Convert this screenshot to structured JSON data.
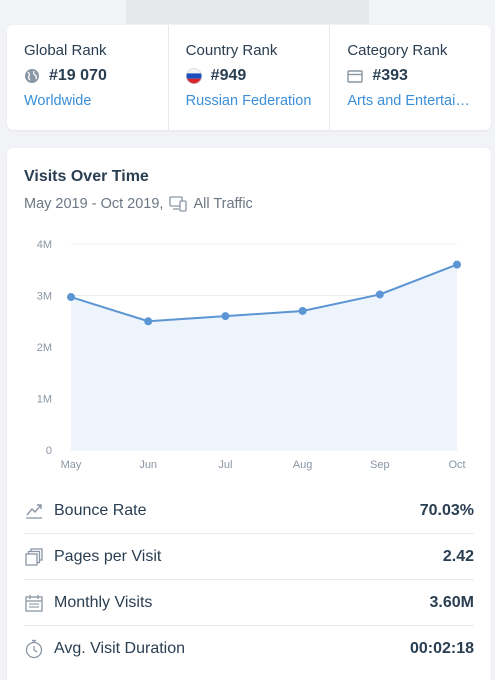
{
  "ranks": [
    {
      "title": "Global Rank",
      "value": "#19 070",
      "link": "Worldwide",
      "icon": "globe-icon"
    },
    {
      "title": "Country Rank",
      "value": "#949",
      "link": "Russian Federation",
      "icon": "russia-flag-icon"
    },
    {
      "title": "Category Rank",
      "value": "#393",
      "link": "Arts and Entertai…",
      "icon": "category-icon"
    }
  ],
  "visits": {
    "title": "Visits Over Time",
    "date_range": "May 2019 - Oct 2019,",
    "traffic": "All Traffic"
  },
  "chart_data": {
    "type": "area",
    "categories": [
      "May",
      "Jun",
      "Jul",
      "Aug",
      "Sep",
      "Oct"
    ],
    "values": [
      2.97,
      2.5,
      2.6,
      2.7,
      3.02,
      3.6
    ],
    "y_ticks": [
      "0",
      "1M",
      "2M",
      "3M",
      "4M"
    ],
    "ylim": [
      0,
      4
    ],
    "line_color": "#5b95d3",
    "fill_color": "#eef4fc",
    "grid": true
  },
  "metrics": [
    {
      "label": "Bounce Rate",
      "value": "70.03%",
      "icon": "bounce-icon"
    },
    {
      "label": "Pages per Visit",
      "value": "2.42",
      "icon": "pages-icon"
    },
    {
      "label": "Monthly Visits",
      "value": "3.60M",
      "icon": "calendar-icon"
    },
    {
      "label": "Avg. Visit Duration",
      "value": "00:02:18",
      "icon": "stopwatch-icon"
    }
  ]
}
